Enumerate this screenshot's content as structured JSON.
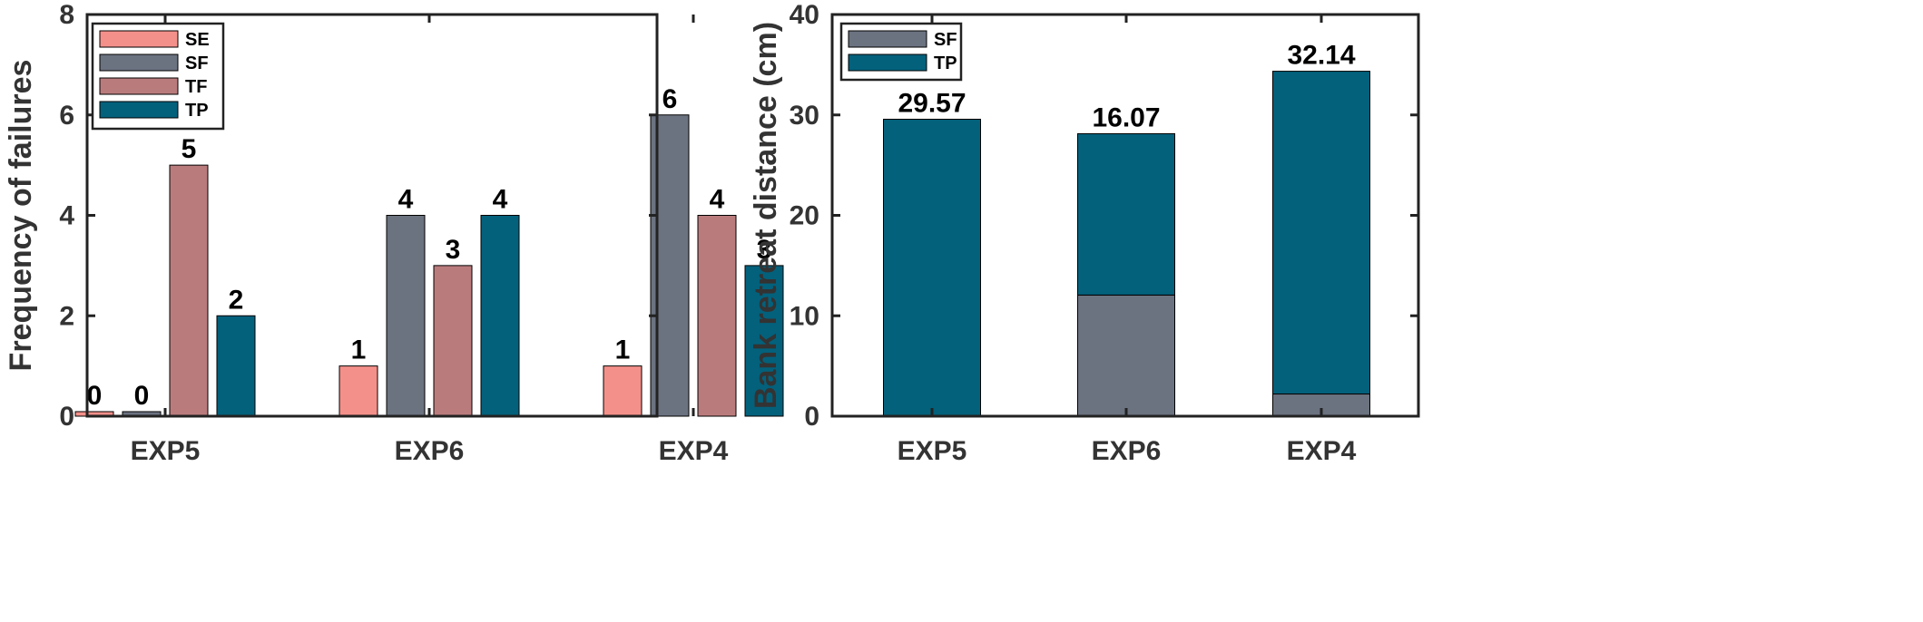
{
  "chart_data": [
    {
      "type": "bar",
      "categories": [
        "EXP5",
        "EXP6",
        "EXP4"
      ],
      "series": [
        {
          "name": "SE",
          "values": [
            0,
            1,
            1
          ],
          "color": "#F4908A"
        },
        {
          "name": "SF",
          "values": [
            0,
            4,
            6
          ],
          "color": "#6B7280"
        },
        {
          "name": "TF",
          "values": [
            5,
            3,
            4
          ],
          "color": "#BA7B7D"
        },
        {
          "name": "TP",
          "values": [
            2,
            4,
            3
          ],
          "color": "#03617C"
        }
      ],
      "value_labels": [
        [
          "0",
          "1",
          "1"
        ],
        [
          "0",
          "4",
          "6"
        ],
        [
          "5",
          "3",
          "4"
        ],
        [
          "2",
          "4",
          "3"
        ]
      ],
      "xlabel": "",
      "ylabel": "Frequency of failures",
      "ylim": [
        0,
        8
      ],
      "yticks": [
        0,
        2,
        4,
        6,
        8
      ],
      "legend": "top-left",
      "grid": false
    },
    {
      "type": "bar",
      "stacked": true,
      "categories": [
        "EXP5",
        "EXP6",
        "EXP4"
      ],
      "series": [
        {
          "name": "SF",
          "values": [
            0,
            12.06,
            2.21
          ],
          "color": "#6B7280"
        },
        {
          "name": "TP",
          "values": [
            29.57,
            16.07,
            32.14
          ],
          "color": "#03617C"
        }
      ],
      "value_labels": [
        [
          "",
          "12.06",
          "2.21"
        ],
        [
          "29.57",
          "16.07",
          "32.14"
        ]
      ],
      "xlabel": "",
      "ylabel": "Bank retreat distance (cm)",
      "ylim": [
        0,
        40
      ],
      "yticks": [
        0,
        10,
        20,
        30,
        40
      ],
      "legend": "top-left",
      "grid": false
    }
  ]
}
